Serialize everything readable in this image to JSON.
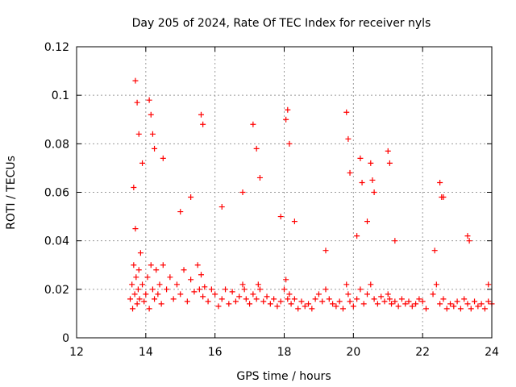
{
  "chart_data": {
    "type": "scatter",
    "title": "Day 205 of 2024, Rate Of TEC Index for receiver nyls",
    "xlabel": "GPS time / hours",
    "ylabel": "ROTI / TECUs",
    "xlim": [
      12,
      24
    ],
    "ylim": [
      0,
      0.12
    ],
    "x_ticks": [
      12,
      14,
      16,
      18,
      20,
      22,
      24
    ],
    "x_tick_labels": [
      "12",
      "14",
      "16",
      "18",
      "20",
      "22",
      "24"
    ],
    "y_ticks": [
      0,
      0.02,
      0.04,
      0.06,
      0.08,
      0.1,
      0.12
    ],
    "y_tick_labels": [
      "0",
      "0.02",
      "0.04",
      "0.06",
      "0.08",
      "0.1",
      "0.12"
    ],
    "grid": true,
    "marker": "+",
    "series": [
      {
        "name": "ROTI",
        "color": "#ff0000",
        "x": [
          13.55,
          13.6,
          13.62,
          13.65,
          13.68,
          13.7,
          13.72,
          13.75,
          13.78,
          13.8,
          13.82,
          13.85,
          13.9,
          13.95,
          14.0,
          14.05,
          14.1,
          14.15,
          14.2,
          14.25,
          14.3,
          14.35,
          14.4,
          14.45,
          14.5,
          14.6,
          14.7,
          14.8,
          14.9,
          15.0,
          15.1,
          15.2,
          15.3,
          15.4,
          15.5,
          15.55,
          15.6,
          15.65,
          15.7,
          15.8,
          15.9,
          16.0,
          16.1,
          16.2,
          16.3,
          16.4,
          16.5,
          16.6,
          16.7,
          16.8,
          16.85,
          16.9,
          17.0,
          17.1,
          17.2,
          17.25,
          17.3,
          17.4,
          17.5,
          17.6,
          17.7,
          17.8,
          17.9,
          18.0,
          18.05,
          18.1,
          18.15,
          18.2,
          18.3,
          18.4,
          18.5,
          18.6,
          18.7,
          18.8,
          18.9,
          19.0,
          19.1,
          19.2,
          19.3,
          19.4,
          19.5,
          19.6,
          19.7,
          19.8,
          19.85,
          19.9,
          20.0,
          20.1,
          20.2,
          20.3,
          20.4,
          20.5,
          20.6,
          20.7,
          20.8,
          20.9,
          21.0,
          21.05,
          21.1,
          21.2,
          21.3,
          21.4,
          21.5,
          21.6,
          21.7,
          21.8,
          21.9,
          22.0,
          22.1,
          22.3,
          22.4,
          22.5,
          22.6,
          22.7,
          22.8,
          22.9,
          23.0,
          23.1,
          23.2,
          23.3,
          23.4,
          23.5,
          23.6,
          23.7,
          23.8,
          23.9,
          24.0,
          13.7,
          13.75,
          13.8,
          14.1,
          14.15,
          14.2,
          14.25,
          15.6,
          15.65,
          17.1,
          17.2,
          18.05,
          18.1,
          18.15,
          19.8,
          19.85,
          20.2,
          20.25,
          20.5,
          20.55,
          21.0,
          22.5,
          22.55,
          23.3,
          13.65,
          13.9,
          14.5,
          15.0,
          15.3,
          16.2,
          16.8,
          17.3,
          17.9,
          18.3,
          19.2,
          19.9,
          20.1,
          20.4,
          20.6,
          21.05,
          21.2,
          22.35,
          22.6,
          23.35,
          23.9
        ],
        "y": [
          0.016,
          0.022,
          0.012,
          0.03,
          0.018,
          0.045,
          0.025,
          0.014,
          0.02,
          0.028,
          0.016,
          0.035,
          0.022,
          0.015,
          0.018,
          0.025,
          0.012,
          0.03,
          0.02,
          0.016,
          0.028,
          0.018,
          0.022,
          0.014,
          0.03,
          0.02,
          0.025,
          0.016,
          0.022,
          0.018,
          0.028,
          0.015,
          0.024,
          0.019,
          0.03,
          0.02,
          0.026,
          0.017,
          0.021,
          0.015,
          0.02,
          0.018,
          0.013,
          0.016,
          0.02,
          0.014,
          0.019,
          0.015,
          0.017,
          0.022,
          0.02,
          0.016,
          0.014,
          0.018,
          0.016,
          0.022,
          0.02,
          0.015,
          0.017,
          0.014,
          0.016,
          0.013,
          0.015,
          0.02,
          0.024,
          0.016,
          0.018,
          0.014,
          0.016,
          0.012,
          0.015,
          0.013,
          0.014,
          0.012,
          0.016,
          0.018,
          0.015,
          0.02,
          0.016,
          0.014,
          0.013,
          0.015,
          0.012,
          0.022,
          0.018,
          0.015,
          0.013,
          0.016,
          0.02,
          0.014,
          0.018,
          0.022,
          0.016,
          0.014,
          0.017,
          0.015,
          0.018,
          0.016,
          0.014,
          0.015,
          0.013,
          0.016,
          0.014,
          0.015,
          0.013,
          0.014,
          0.016,
          0.015,
          0.012,
          0.018,
          0.022,
          0.014,
          0.016,
          0.012,
          0.014,
          0.013,
          0.015,
          0.012,
          0.016,
          0.014,
          0.012,
          0.015,
          0.013,
          0.014,
          0.012,
          0.015,
          0.014,
          0.106,
          0.097,
          0.084,
          0.098,
          0.092,
          0.084,
          0.078,
          0.092,
          0.088,
          0.088,
          0.078,
          0.09,
          0.094,
          0.08,
          0.093,
          0.082,
          0.074,
          0.064,
          0.072,
          0.065,
          0.077,
          0.064,
          0.058,
          0.042,
          0.062,
          0.072,
          0.074,
          0.052,
          0.058,
          0.054,
          0.06,
          0.066,
          0.05,
          0.048,
          0.036,
          0.068,
          0.042,
          0.048,
          0.06,
          0.072,
          0.04,
          0.036,
          0.058,
          0.04,
          0.022
        ]
      }
    ]
  }
}
